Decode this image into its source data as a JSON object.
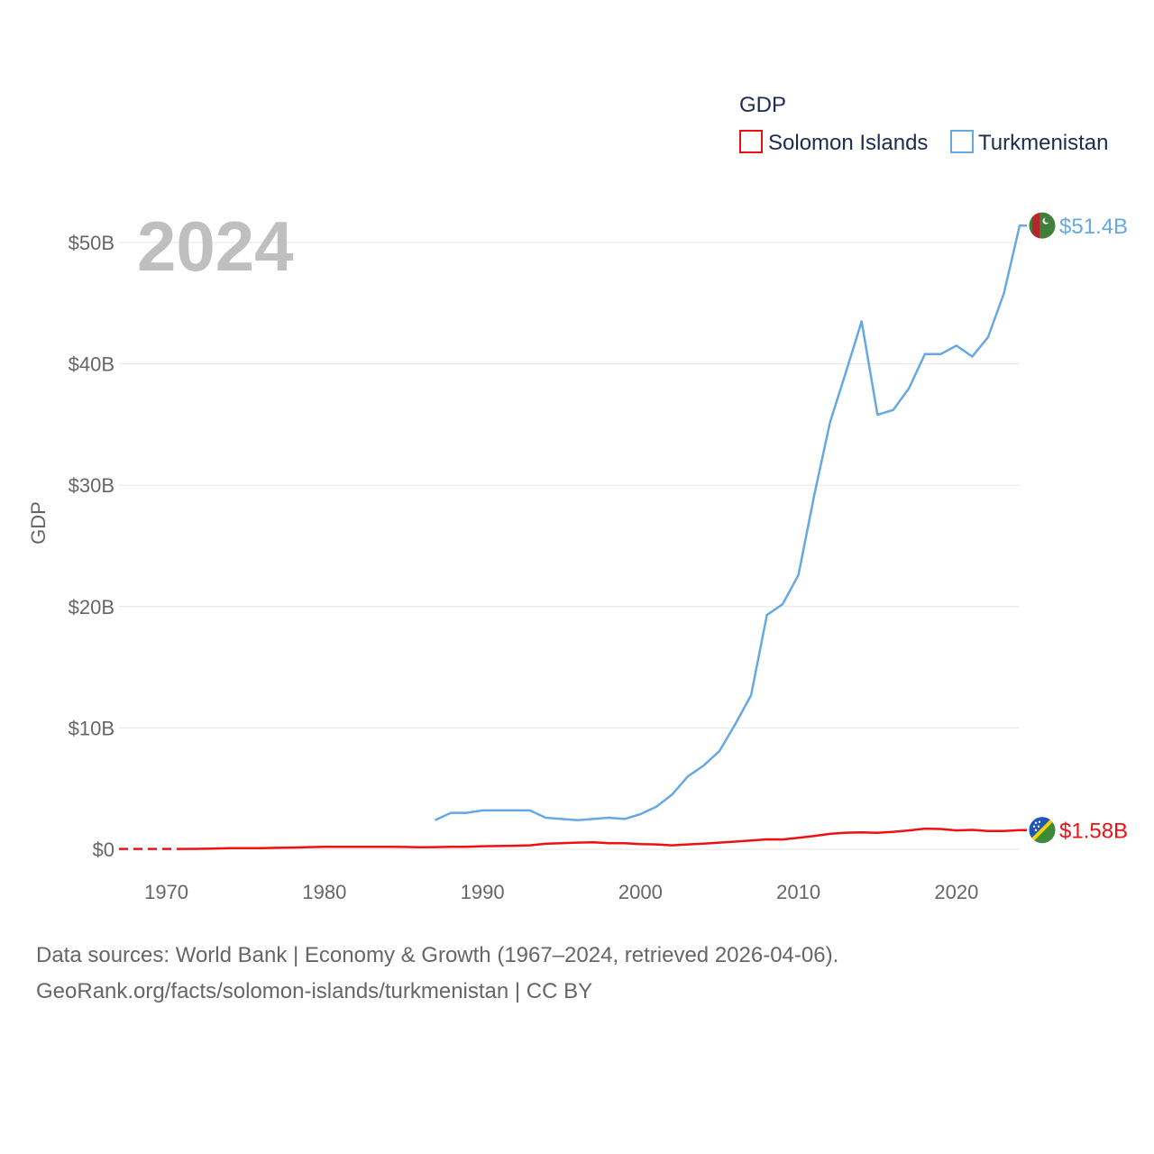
{
  "chart_data": {
    "type": "line",
    "year_label": "2024",
    "ylabel": "GDP",
    "xlim": [
      1967,
      2024
    ],
    "ylim": [
      0,
      50
    ],
    "x_ticks": [
      1970,
      1980,
      1990,
      2000,
      2010,
      2020
    ],
    "y_ticks": [
      {
        "value": 0,
        "label": "$0"
      },
      {
        "value": 10,
        "label": "$10B"
      },
      {
        "value": 20,
        "label": "$20B"
      },
      {
        "value": 30,
        "label": "$30B"
      },
      {
        "value": 40,
        "label": "$40B"
      },
      {
        "value": 50,
        "label": "$50B"
      }
    ],
    "legend": {
      "title": "GDP",
      "position": "top-right"
    },
    "series": [
      {
        "name": "Solomon Islands",
        "color": "#ee1111",
        "end_label": "$1.58B",
        "flag": "solomon-islands-flag",
        "x": [
          1967,
          1968,
          1969,
          1970,
          1971,
          1972,
          1973,
          1974,
          1975,
          1976,
          1977,
          1978,
          1979,
          1980,
          1981,
          1982,
          1983,
          1984,
          1985,
          1986,
          1987,
          1988,
          1989,
          1990,
          1991,
          1992,
          1993,
          1994,
          1995,
          1996,
          1997,
          1998,
          1999,
          2000,
          2001,
          2002,
          2003,
          2004,
          2005,
          2006,
          2007,
          2008,
          2009,
          2010,
          2011,
          2012,
          2013,
          2014,
          2015,
          2016,
          2017,
          2018,
          2019,
          2020,
          2021,
          2022,
          2023,
          2024
        ],
        "y": [
          0.03,
          0.03,
          0.03,
          0.03,
          0.03,
          0.04,
          0.06,
          0.1,
          0.09,
          0.1,
          0.12,
          0.14,
          0.18,
          0.2,
          0.21,
          0.21,
          0.2,
          0.2,
          0.19,
          0.17,
          0.18,
          0.2,
          0.2,
          0.25,
          0.27,
          0.29,
          0.33,
          0.45,
          0.5,
          0.55,
          0.58,
          0.5,
          0.5,
          0.43,
          0.4,
          0.33,
          0.4,
          0.46,
          0.55,
          0.63,
          0.72,
          0.82,
          0.81,
          0.94,
          1.1,
          1.27,
          1.37,
          1.4,
          1.36,
          1.44,
          1.55,
          1.7,
          1.67,
          1.55,
          1.6,
          1.5,
          1.5,
          1.58
        ],
        "dashed_until": 1971
      },
      {
        "name": "Turkmenistan",
        "color": "#66a8e3",
        "end_label": "$51.4B",
        "flag": "turkmenistan-flag",
        "x": [
          1987,
          1988,
          1989,
          1990,
          1991,
          1992,
          1993,
          1994,
          1995,
          1996,
          1997,
          1998,
          1999,
          2000,
          2001,
          2002,
          2003,
          2004,
          2005,
          2006,
          2007,
          2008,
          2009,
          2010,
          2011,
          2012,
          2013,
          2014,
          2015,
          2016,
          2017,
          2018,
          2019,
          2020,
          2021,
          2022,
          2023,
          2024
        ],
        "y": [
          2.4,
          3.0,
          3.0,
          3.2,
          3.2,
          3.2,
          3.2,
          2.6,
          2.5,
          2.4,
          2.5,
          2.6,
          2.5,
          2.9,
          3.5,
          4.5,
          6.0,
          6.9,
          8.1,
          10.3,
          12.7,
          19.3,
          20.2,
          22.6,
          29.2,
          35.2,
          39.3,
          43.5,
          35.8,
          36.2,
          38.0,
          40.8,
          40.8,
          41.5,
          40.6,
          42.2,
          45.8,
          51.4
        ]
      }
    ]
  },
  "footer": {
    "line1": "Data sources: World Bank | Economy & Growth (1967–2024, retrieved 2026-04-06).",
    "line2": "GeoRank.org/facts/solomon-islands/turkmenistan | CC BY"
  }
}
